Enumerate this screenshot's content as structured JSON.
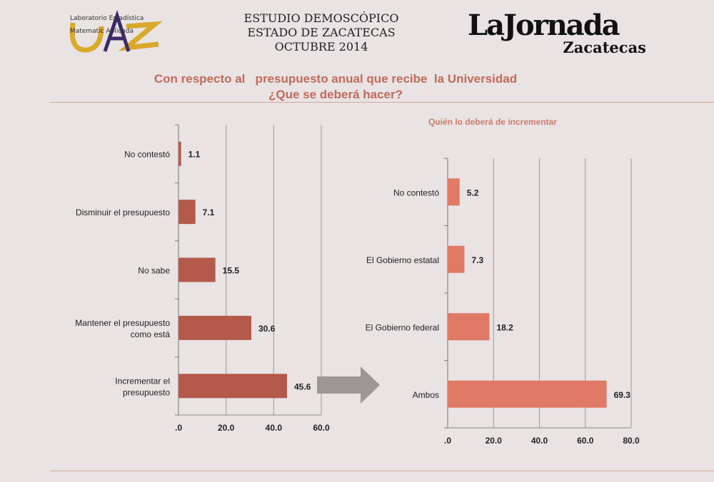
{
  "header": {
    "title_lines": [
      "ESTUDIO DEMOSCÓPICO",
      "ESTADO DE ZACATECAS",
      "OCTUBRE 2014"
    ],
    "logo_left_text": "Laboratorio de Estadística & Matemática Aplicada UAZ",
    "logo_right_main": "LaJornada",
    "logo_right_sub": "Zacatecas"
  },
  "question_lines": [
    "Con respecto al   presupuesto anual que recibe  la Universidad",
    "¿Que se deberá hacer?"
  ],
  "colors": {
    "left_bar": "#b45a4b",
    "right_bar": "#e07a66",
    "arrow": "#9c9696",
    "title": "#c26a5a"
  },
  "chart_data": [
    {
      "type": "bar",
      "orientation": "horizontal",
      "title": "Con respecto al presupuesto anual que recibe la Universidad ¿Que se deberá hacer?",
      "categories": [
        "No contestó",
        "Disminuir el presupuesto",
        "No sabe",
        "Mantener el presupuesto\ncomo está",
        "Incrementar el\npresupuesto"
      ],
      "values": [
        1.1,
        7.1,
        15.5,
        30.6,
        45.6
      ],
      "xlim": [
        0,
        60
      ],
      "ticks": [
        ".0",
        "20.0",
        "40.0",
        "60.0"
      ],
      "grid": true
    },
    {
      "type": "bar",
      "orientation": "horizontal",
      "title": "Quién lo deberá de incrementar",
      "categories": [
        "No contestó",
        "El Gobierno estatal",
        "El Gobierno federal",
        "Ambos"
      ],
      "values": [
        5.2,
        7.3,
        18.2,
        69.3
      ],
      "xlim": [
        0,
        80
      ],
      "ticks": [
        ".0",
        "20.0",
        "40.0",
        "60.0",
        "80.0"
      ],
      "grid": true
    }
  ]
}
